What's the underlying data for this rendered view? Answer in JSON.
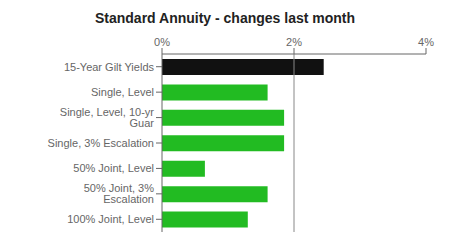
{
  "chart_data": {
    "type": "bar",
    "orientation": "horizontal",
    "title": "Standard Annuity - changes last month",
    "categories": [
      "15-Year Gilt Yields",
      "Single, Level",
      "Single, Level, 10-yr Guar",
      "Single, 3% Escalation",
      "50% Joint, Level",
      "50% Joint, 3% Escalation",
      "100% Joint, Level"
    ],
    "values": [
      2.45,
      1.6,
      1.85,
      1.85,
      0.65,
      1.6,
      1.3
    ],
    "colors": [
      "#111111",
      "#22bb22",
      "#22bb22",
      "#22bb22",
      "#22bb22",
      "#22bb22",
      "#22bb22"
    ],
    "xlim": [
      0,
      4
    ],
    "xticks": [
      {
        "value": 0,
        "label": "0%"
      },
      {
        "value": 2,
        "label": "2%"
      },
      {
        "value": 4,
        "label": "4%"
      }
    ],
    "reference_line": {
      "x": 2,
      "color": "#888888"
    },
    "grid": false
  }
}
